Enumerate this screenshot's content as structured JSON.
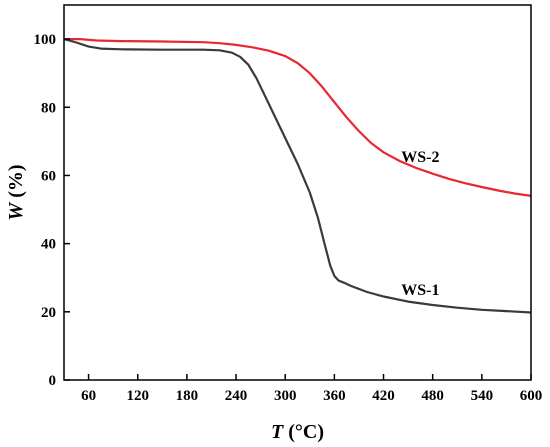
{
  "chart_data": {
    "type": "line",
    "xlabel": {
      "italic": "T",
      "rest": " (°C)"
    },
    "ylabel": {
      "italic": "W",
      "rest": " (%)"
    },
    "xlim": [
      30,
      600
    ],
    "ylim": [
      0,
      110
    ],
    "xticks": [
      60,
      120,
      180,
      240,
      300,
      360,
      420,
      480,
      540,
      600
    ],
    "yticks": [
      0,
      20,
      40,
      60,
      80,
      100
    ],
    "grid": false,
    "series": [
      {
        "name": "WS-2",
        "color": "#e8282e",
        "points": [
          [
            30,
            100
          ],
          [
            50,
            100
          ],
          [
            70,
            99.6
          ],
          [
            100,
            99.4
          ],
          [
            150,
            99.3
          ],
          [
            200,
            99.1
          ],
          [
            220,
            98.8
          ],
          [
            240,
            98.3
          ],
          [
            260,
            97.6
          ],
          [
            280,
            96.6
          ],
          [
            300,
            95.0
          ],
          [
            315,
            93.0
          ],
          [
            330,
            90.0
          ],
          [
            345,
            86.0
          ],
          [
            360,
            81.5
          ],
          [
            375,
            77.0
          ],
          [
            390,
            73.0
          ],
          [
            405,
            69.5
          ],
          [
            420,
            66.8
          ],
          [
            440,
            64.2
          ],
          [
            460,
            62.2
          ],
          [
            480,
            60.5
          ],
          [
            500,
            59.0
          ],
          [
            520,
            57.7
          ],
          [
            540,
            56.6
          ],
          [
            560,
            55.6
          ],
          [
            580,
            54.7
          ],
          [
            600,
            54.0
          ]
        ]
      },
      {
        "name": "WS-1",
        "color": "#3a3a3a",
        "points": [
          [
            30,
            100
          ],
          [
            45,
            99.0
          ],
          [
            60,
            97.8
          ],
          [
            75,
            97.2
          ],
          [
            100,
            97.0
          ],
          [
            150,
            96.9
          ],
          [
            200,
            96.9
          ],
          [
            220,
            96.7
          ],
          [
            235,
            96.0
          ],
          [
            245,
            94.8
          ],
          [
            255,
            92.5
          ],
          [
            265,
            88.5
          ],
          [
            275,
            83.5
          ],
          [
            285,
            78.5
          ],
          [
            300,
            71.0
          ],
          [
            315,
            63.5
          ],
          [
            330,
            55.0
          ],
          [
            340,
            47.5
          ],
          [
            348,
            40.0
          ],
          [
            355,
            33.5
          ],
          [
            360,
            30.5
          ],
          [
            365,
            29.2
          ],
          [
            372,
            28.5
          ],
          [
            380,
            27.6
          ],
          [
            400,
            25.8
          ],
          [
            420,
            24.5
          ],
          [
            450,
            23.0
          ],
          [
            480,
            22.0
          ],
          [
            510,
            21.2
          ],
          [
            540,
            20.6
          ],
          [
            570,
            20.2
          ],
          [
            600,
            19.8
          ]
        ]
      }
    ],
    "annotations": [
      {
        "text": "WS-2",
        "series": "WS-2",
        "x": 465,
        "y": 64
      },
      {
        "text": "WS-1",
        "series": "WS-1",
        "x": 465,
        "y": 25
      }
    ]
  }
}
